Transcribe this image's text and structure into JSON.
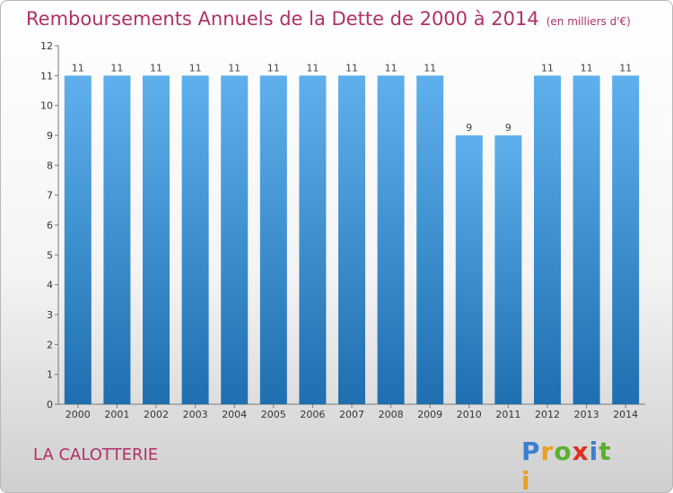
{
  "title": "Remboursements Annuels de la Dette de 2000 à 2014",
  "unit": "(en milliers d'€)",
  "commune": "LA CALOTTERIE",
  "brand": {
    "letters": [
      "P",
      "r",
      "o",
      "x",
      "i",
      "t",
      "i"
    ],
    "colors": [
      "#3a7fd0",
      "#e8a020",
      "#5cb030",
      "#e03020",
      "#3a7fd0",
      "#5cb030",
      "#e8a020"
    ]
  },
  "colors": {
    "bar_top": "#5fb0ec",
    "bar_bottom": "#1f6fb0",
    "text": "#b0306a"
  },
  "chart_data": {
    "type": "bar",
    "categories": [
      "2000",
      "2001",
      "2002",
      "2003",
      "2004",
      "2005",
      "2006",
      "2007",
      "2008",
      "2009",
      "2010",
      "2011",
      "2012",
      "2013",
      "2014"
    ],
    "values": [
      11,
      11,
      11,
      11,
      11,
      11,
      11,
      11,
      11,
      11,
      9,
      9,
      11,
      11,
      11
    ],
    "data_labels": [
      "11",
      "11",
      "11",
      "11",
      "11",
      "11",
      "11",
      "11",
      "11",
      "11",
      "9",
      "9",
      "11",
      "11",
      "11"
    ],
    "ylim": [
      0,
      12
    ],
    "yticks": [
      0,
      1,
      2,
      3,
      4,
      5,
      6,
      7,
      8,
      9,
      10,
      11,
      12
    ],
    "grid": false
  }
}
